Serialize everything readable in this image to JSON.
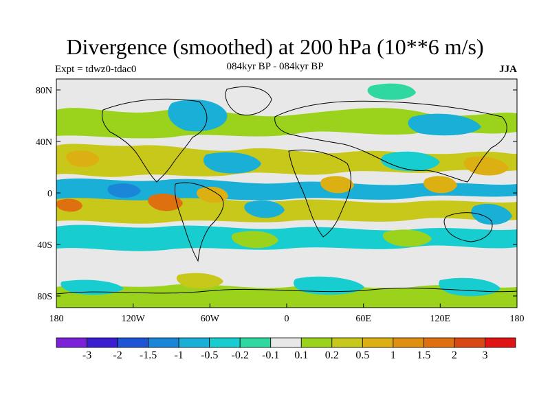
{
  "title": "Divergence (smoothed) at 200 hPa (10**6 m/s)",
  "subtitle_left": "Expt = tdwz0-tdac0",
  "subtitle_center": "084kyr BP - 084kyr BP",
  "subtitle_right": "JJA",
  "lat_labels": [
    "80N",
    "40N",
    "0",
    "40S",
    "80S"
  ],
  "lon_labels": [
    "180",
    "120W",
    "60W",
    "0",
    "60E",
    "120E",
    "180"
  ],
  "colorbar": {
    "colors": [
      "#7b22d8",
      "#3a1fd2",
      "#1d55d6",
      "#1b86d8",
      "#19afd6",
      "#18cdd0",
      "#2ed8a0",
      "#e8e8e8",
      "#9ad21c",
      "#c8c81a",
      "#dcb012",
      "#e09010",
      "#de7010",
      "#d84812",
      "#e01414"
    ],
    "labels": [
      "-3",
      "-2",
      "-1.5",
      "-1",
      "-0.5",
      "-0.2",
      "-0.1",
      "0.1",
      "0.2",
      "0.5",
      "1",
      "1.5",
      "2",
      "3"
    ]
  },
  "colors": {
    "land_outline": "#000000",
    "background": "#e8e8e8"
  }
}
